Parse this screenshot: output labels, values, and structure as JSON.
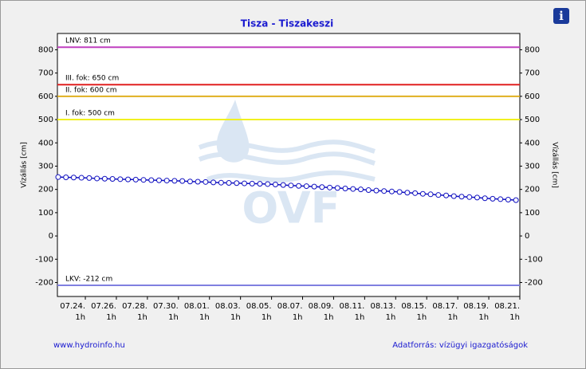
{
  "chart_data": {
    "type": "line",
    "title": "Tisza - Tiszakeszi",
    "y_label": "Vízállás [cm]",
    "watermark": "OVF",
    "footer_left": "www.hydroinfo.hu",
    "footer_right": "Adatforrás: vízügyi igazgatóságok",
    "xlim": [
      -1.8,
      28
    ],
    "xticks": [
      {
        "value": 0,
        "label": "07.24."
      },
      {
        "value": 2,
        "label": "07.26."
      },
      {
        "value": 4,
        "label": "07.28."
      },
      {
        "value": 6,
        "label": "07.30."
      },
      {
        "value": 8,
        "label": "08.01."
      },
      {
        "value": 10,
        "label": "08.03."
      },
      {
        "value": 12,
        "label": "08.05."
      },
      {
        "value": 14,
        "label": "08.07."
      },
      {
        "value": 16,
        "label": "08.09."
      },
      {
        "value": 18,
        "label": "08.11."
      },
      {
        "value": 20,
        "label": "08.13."
      },
      {
        "value": 22,
        "label": "08.15."
      },
      {
        "value": 24,
        "label": "08.17."
      },
      {
        "value": 26,
        "label": "08.19."
      },
      {
        "value": 28,
        "label": "08.21."
      }
    ],
    "xtick_hours": [
      "1h",
      "1h",
      "1h",
      "1h",
      "1h",
      "1h",
      "1h",
      "1h",
      "1h",
      "1h",
      "1h",
      "1h",
      "1h",
      "1h",
      "1h"
    ],
    "ylim": [
      -260,
      870
    ],
    "yticks": [
      -200,
      -100,
      0,
      100,
      200,
      300,
      400,
      500,
      600,
      700,
      800
    ],
    "thresholds": [
      {
        "label": "LNV: 811 cm",
        "value": 811,
        "color": "#c040c0"
      },
      {
        "label": "III. fok: 650 cm",
        "value": 650,
        "color": "#e02020"
      },
      {
        "label": "II. fok: 600 cm",
        "value": 600,
        "color": "#e0b020"
      },
      {
        "label": "I. fok: 500 cm",
        "value": 500,
        "color": "#f0f020"
      },
      {
        "label": "LKV: -212 cm",
        "value": -212,
        "color": "#8080e0"
      }
    ],
    "x": [
      -1.75,
      -1.25,
      -0.75,
      -0.25,
      0.25,
      0.75,
      1.25,
      1.75,
      2.25,
      2.75,
      3.25,
      3.75,
      4.25,
      4.75,
      5.25,
      5.75,
      6.25,
      6.75,
      7.25,
      7.75,
      8.25,
      8.75,
      9.25,
      9.75,
      10.25,
      10.75,
      11.25,
      11.75,
      12.25,
      12.75,
      13.25,
      13.75,
      14.25,
      14.75,
      15.25,
      15.75,
      16.25,
      16.75,
      17.25,
      17.75,
      18.25,
      18.75,
      19.25,
      19.75,
      20.25,
      20.75,
      21.25,
      21.75,
      22.25,
      22.75,
      23.25,
      23.75,
      24.25,
      24.75,
      25.25,
      25.75,
      26.25,
      26.75,
      27.25,
      27.75
    ],
    "series": [
      {
        "color": "#1010c0",
        "values": [
          253,
          252,
          251,
          250,
          249,
          247,
          246,
          245,
          244,
          243,
          242,
          241,
          240,
          239,
          238,
          237,
          236,
          234,
          233,
          232,
          230,
          229,
          228,
          227,
          226,
          225,
          224,
          223,
          221,
          219,
          217,
          215,
          214,
          212,
          210,
          208,
          206,
          204,
          202,
          200,
          197,
          195,
          193,
          191,
          189,
          186,
          184,
          181,
          179,
          176,
          174,
          171,
          169,
          167,
          165,
          162,
          160,
          158,
          156,
          154
        ]
      }
    ]
  }
}
